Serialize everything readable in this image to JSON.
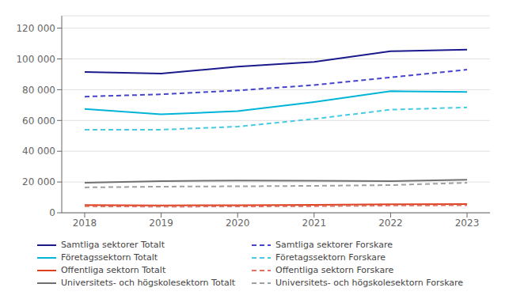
{
  "chart_data": {
    "type": "line",
    "x": [
      2018,
      2019,
      2020,
      2021,
      2022,
      2023
    ],
    "xlim": [
      2017.7,
      2023.3
    ],
    "xticks": [
      2018,
      2019,
      2020,
      2021,
      2022,
      2023
    ],
    "ylim": [
      0,
      128000
    ],
    "yticks": [
      0,
      {
        "value": 20000,
        "label": "20 000"
      },
      {
        "value": 40000,
        "label": "40 000"
      },
      {
        "value": 60000,
        "label": "60 000"
      },
      {
        "value": 80000,
        "label": "80 000"
      },
      {
        "value": 100000,
        "label": "100 000"
      },
      {
        "value": 120000,
        "label": "120 000"
      }
    ],
    "grid": "y",
    "legend": "bottom",
    "series": [
      {
        "name": "Samtliga sektorer Totalt",
        "color": "#1a1a8c",
        "line_style": "solid",
        "values": [
          91500,
          90500,
          95000,
          98000,
          105000,
          106000
        ]
      },
      {
        "name": "Samtliga sektorer Forskare",
        "color": "#4444cc",
        "line_style": "dashed",
        "values": [
          75500,
          77000,
          79500,
          83000,
          88000,
          93000
        ]
      },
      {
        "name": "Företagssektorn Totalt",
        "color": "#00b4d8",
        "line_style": "solid",
        "values": [
          67500,
          64000,
          66000,
          72000,
          79000,
          78500
        ]
      },
      {
        "name": "Företagssektorn Forskare",
        "color": "#48cae4",
        "line_style": "dashed",
        "values": [
          54000,
          54000,
          56000,
          61000,
          67000,
          68500
        ]
      },
      {
        "name": "Offentliga sektorn Totalt",
        "color": "#e04020",
        "line_style": "solid",
        "values": [
          5000,
          4800,
          4900,
          5100,
          5500,
          5700
        ]
      },
      {
        "name": "Offentliga sektorn Forskare",
        "color": "#e07060",
        "line_style": "dashed",
        "values": [
          4200,
          4000,
          4100,
          4300,
          4700,
          4900
        ]
      },
      {
        "name": "Universitets- och högskolesektorn Totalt",
        "color": "#707070",
        "line_style": "solid",
        "values": [
          19500,
          20500,
          21000,
          20800,
          20500,
          21500
        ]
      },
      {
        "name": "Universitets- och högskolesektorn Forskare",
        "color": "#a0a0a0",
        "line_style": "dashed",
        "values": [
          16500,
          17000,
          17200,
          17500,
          18000,
          19500
        ]
      }
    ]
  }
}
